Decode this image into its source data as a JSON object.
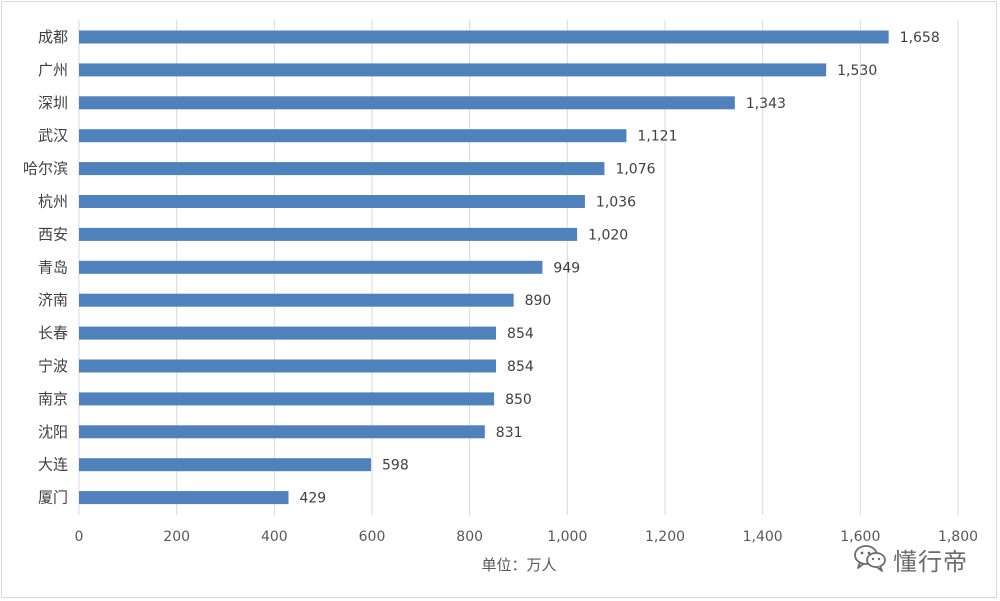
{
  "chart_data": {
    "type": "bar",
    "orientation": "horizontal",
    "categories": [
      "成都",
      "广州",
      "深圳",
      "武汉",
      "哈尔滨",
      "杭州",
      "西安",
      "青岛",
      "济南",
      "长春",
      "宁波",
      "南京",
      "沈阳",
      "大连",
      "厦门"
    ],
    "values": [
      1658,
      1530,
      1343,
      1121,
      1076,
      1036,
      1020,
      949,
      890,
      854,
      854,
      850,
      831,
      598,
      429
    ],
    "value_labels": [
      "1,658",
      "1,530",
      "1,343",
      "1,121",
      "1,076",
      "1,036",
      "1,020",
      "949",
      "890",
      "854",
      "854",
      "850",
      "831",
      "598",
      "429"
    ],
    "xlim": [
      0,
      1800
    ],
    "xticks": [
      0,
      200,
      400,
      600,
      800,
      1000,
      1200,
      1400,
      1600,
      1800
    ],
    "xtick_labels": [
      "0",
      "200",
      "400",
      "600",
      "800",
      "1,000",
      "1,200",
      "1,400",
      "1,600",
      "1,800"
    ],
    "xlabel": "单位：万人",
    "grid": "vertical",
    "bar_color": "#4f81bd",
    "grid_color": "#d9d9d9",
    "legend": "none"
  },
  "watermark": {
    "text": "懂行帝",
    "icon": "wechat-icon"
  }
}
